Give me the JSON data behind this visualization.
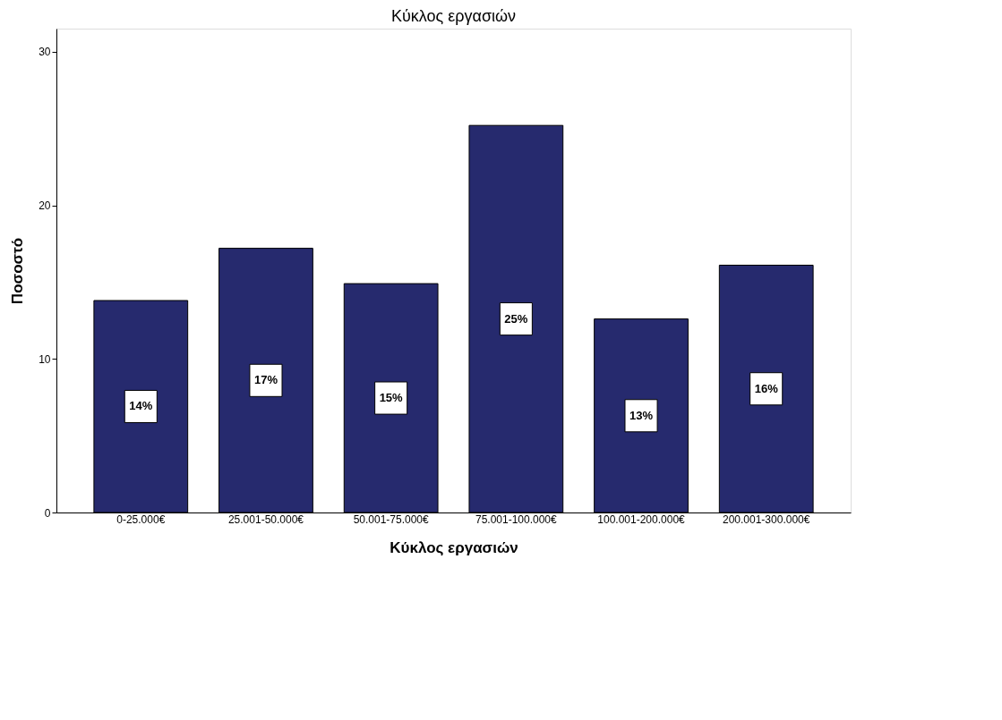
{
  "chart_data": {
    "type": "bar",
    "title": "Κύκλος εργασιών",
    "xlabel": "Κύκλος εργασιών",
    "ylabel": "Ποσοστό",
    "categories": [
      "0-25.000€",
      "25.001-50.000€",
      "50.001-75.000€",
      "75.001-100.000€",
      "100.001-200.000€",
      "200.001-300.000€"
    ],
    "values": [
      13.8,
      17.2,
      14.9,
      25.2,
      12.6,
      16.1
    ],
    "value_labels": [
      "14%",
      "17%",
      "15%",
      "25%",
      "13%",
      "16%"
    ],
    "color": "#262a6e",
    "ylim": [
      0,
      31.5
    ],
    "yticks": [
      0,
      10,
      20,
      30
    ],
    "grid": false
  }
}
